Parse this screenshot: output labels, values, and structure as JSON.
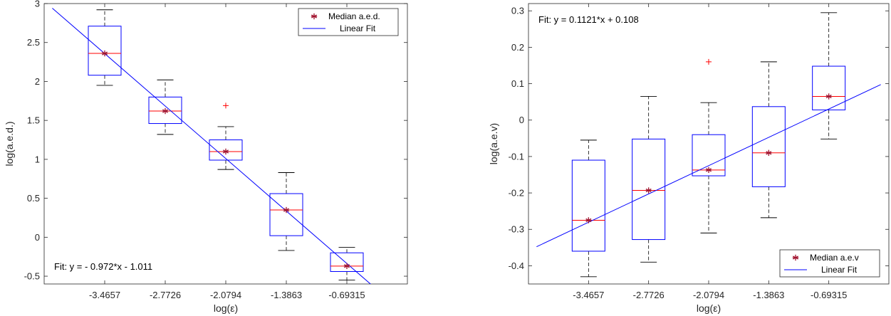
{
  "chart_data": [
    {
      "type": "box",
      "xlabel": "log(ε)",
      "ylabel": "log(a.e.d.)",
      "categories": [
        "-3.4657",
        "-2.7726",
        "-2.0794",
        "-1.3863",
        "-0.69315"
      ],
      "ylim": [
        -0.6,
        3
      ],
      "yticks": [
        -0.5,
        0,
        0.5,
        1,
        1.5,
        2,
        2.5,
        3
      ],
      "ytick_labels": [
        "-0.5",
        "0",
        "0.5",
        "1",
        "1.5",
        "2",
        "2.5",
        "3"
      ],
      "boxes": [
        {
          "category": "-3.4657",
          "whisker_low": 1.95,
          "q1": 2.08,
          "median": 2.36,
          "q3": 2.71,
          "whisker_high": 2.92,
          "outliers": []
        },
        {
          "category": "-2.7726",
          "whisker_low": 1.32,
          "q1": 1.46,
          "median": 1.62,
          "q3": 1.8,
          "whisker_high": 2.02,
          "outliers": []
        },
        {
          "category": "-2.0794",
          "whisker_low": 0.87,
          "q1": 0.99,
          "median": 1.1,
          "q3": 1.25,
          "whisker_high": 1.42,
          "outliers": [
            1.69
          ]
        },
        {
          "category": "-1.3863",
          "whisker_low": -0.17,
          "q1": 0.02,
          "median": 0.35,
          "q3": 0.56,
          "whisker_high": 0.83,
          "outliers": []
        },
        {
          "category": "-0.69315",
          "whisker_low": -0.55,
          "q1": -0.44,
          "median": -0.37,
          "q3": -0.2,
          "whisker_high": -0.13,
          "outliers": []
        }
      ],
      "series": [
        {
          "name": "Median a.e.d.",
          "values": [
            2.36,
            1.62,
            1.1,
            0.35,
            -0.37
          ]
        },
        {
          "name": "Linear Fit",
          "slope": -0.972,
          "intercept": -1.011
        }
      ],
      "fit_text": "Fit:  y = - 0.972*x - 1.011",
      "legend_position": "top-right",
      "grid": false,
      "colors": {
        "box": "#0000ff",
        "median_line": "#ff0000",
        "median_marker": "#a2142f",
        "fit_line": "#0000ff",
        "outlier": "#ff0000"
      }
    },
    {
      "type": "box",
      "xlabel": "log(ε)",
      "ylabel": "log(a.e.v)",
      "categories": [
        "-3.4657",
        "-2.7726",
        "-2.0794",
        "-1.3863",
        "-0.69315"
      ],
      "ylim": [
        -0.45,
        0.32
      ],
      "yticks": [
        -0.4,
        -0.3,
        -0.2,
        -0.1,
        0,
        0.1,
        0.2,
        0.3
      ],
      "ytick_labels": [
        "-0.4",
        "-0.3",
        "-0.2",
        "-0.1",
        "0",
        "0.1",
        "0.2",
        "0.3"
      ],
      "boxes": [
        {
          "category": "-3.4657",
          "whisker_low": -0.43,
          "q1": -0.36,
          "median": -0.275,
          "q3": -0.11,
          "whisker_high": -0.055,
          "outliers": []
        },
        {
          "category": "-2.7726",
          "whisker_low": -0.39,
          "q1": -0.328,
          "median": -0.193,
          "q3": -0.052,
          "whisker_high": 0.065,
          "outliers": []
        },
        {
          "category": "-2.0794",
          "whisker_low": -0.31,
          "q1": -0.153,
          "median": -0.137,
          "q3": -0.04,
          "whisker_high": 0.048,
          "outliers": [
            0.16
          ]
        },
        {
          "category": "-1.3863",
          "whisker_low": -0.268,
          "q1": -0.183,
          "median": -0.09,
          "q3": 0.037,
          "whisker_high": 0.16,
          "outliers": []
        },
        {
          "category": "-0.69315",
          "whisker_low": -0.052,
          "q1": 0.028,
          "median": 0.065,
          "q3": 0.148,
          "whisker_high": 0.295,
          "outliers": []
        }
      ],
      "series": [
        {
          "name": "Median a.e.v",
          "values": [
            -0.275,
            -0.193,
            -0.137,
            -0.09,
            0.065
          ]
        },
        {
          "name": "Linear Fit",
          "slope": 0.1121,
          "intercept": 0.108
        }
      ],
      "fit_text": "Fit:  y = 0.1121*x + 0.108",
      "legend_position": "bottom-right",
      "grid": false,
      "colors": {
        "box": "#0000ff",
        "median_line": "#ff0000",
        "median_marker": "#a2142f",
        "fit_line": "#0000ff",
        "outlier": "#ff0000"
      }
    }
  ]
}
